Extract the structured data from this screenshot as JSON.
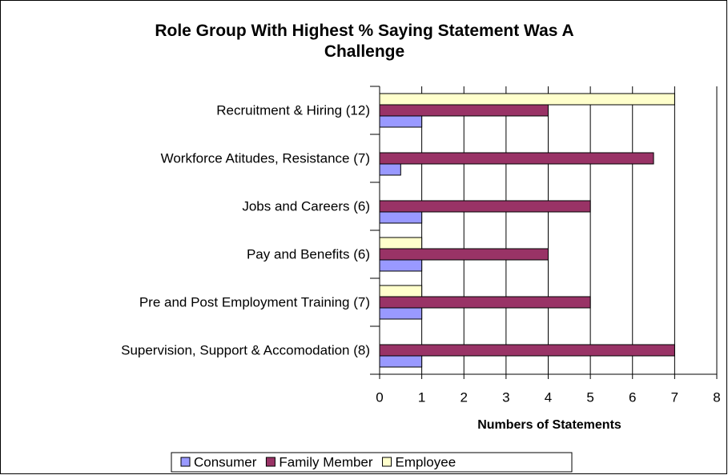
{
  "chart_data": {
    "type": "bar",
    "orientation": "horizontal",
    "title": "Role Group With Highest % Saying Statement Was A Challenge",
    "xlabel": "Numbers of Statements",
    "categories": [
      "Recruitment & Hiring (12)",
      "Workforce Atitudes, Resistance (7)",
      "Jobs and Careers (6)",
      "Pay and Benefits (6)",
      "Pre and Post Employment Training (7)",
      "Supervision, Support & Accomodation (8)"
    ],
    "series": [
      {
        "name": "Consumer",
        "color": "#9999ff",
        "values": [
          1,
          0.5,
          1,
          1,
          1,
          1
        ]
      },
      {
        "name": "Family Member",
        "color": "#993366",
        "values": [
          4,
          6.5,
          5,
          4,
          5,
          7
        ]
      },
      {
        "name": "Employee",
        "color": "#ffffcc",
        "values": [
          7,
          0,
          0,
          1,
          1,
          0
        ]
      }
    ],
    "xlim": [
      0,
      8
    ],
    "xticks": [
      0,
      1,
      2,
      3,
      4,
      5,
      6,
      7,
      8
    ],
    "grid": true,
    "legend": "bottom"
  }
}
